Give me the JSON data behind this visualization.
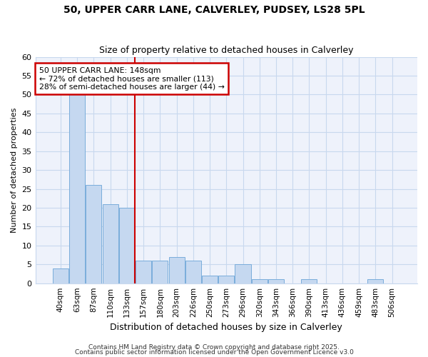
{
  "title1": "50, UPPER CARR LANE, CALVERLEY, PUDSEY, LS28 5PL",
  "title2": "Size of property relative to detached houses in Calverley",
  "xlabel": "Distribution of detached houses by size in Calverley",
  "ylabel": "Number of detached properties",
  "categories": [
    "40sqm",
    "63sqm",
    "87sqm",
    "110sqm",
    "133sqm",
    "157sqm",
    "180sqm",
    "203sqm",
    "226sqm",
    "250sqm",
    "273sqm",
    "296sqm",
    "320sqm",
    "343sqm",
    "366sqm",
    "390sqm",
    "413sqm",
    "436sqm",
    "459sqm",
    "483sqm",
    "506sqm"
  ],
  "values": [
    4,
    50,
    26,
    21,
    20,
    6,
    6,
    7,
    6,
    2,
    2,
    5,
    1,
    1,
    0,
    1,
    0,
    0,
    0,
    1,
    0
  ],
  "bar_color": "#c5d8f0",
  "bar_edge_color": "#7aaddb",
  "red_line_x": 4.5,
  "annotation_text": "50 UPPER CARR LANE: 148sqm\n← 72% of detached houses are smaller (113)\n28% of semi-detached houses are larger (44) →",
  "annotation_box_color": "#ffffff",
  "annotation_box_edge": "#cc0000",
  "grid_color": "#c8d8ee",
  "background_color": "#ffffff",
  "plot_bg_color": "#eef2fb",
  "footer_text1": "Contains HM Land Registry data © Crown copyright and database right 2025.",
  "footer_text2": "Contains public sector information licensed under the Open Government Licence v3.0",
  "ylim": [
    0,
    60
  ],
  "yticks": [
    0,
    5,
    10,
    15,
    20,
    25,
    30,
    35,
    40,
    45,
    50,
    55,
    60
  ]
}
